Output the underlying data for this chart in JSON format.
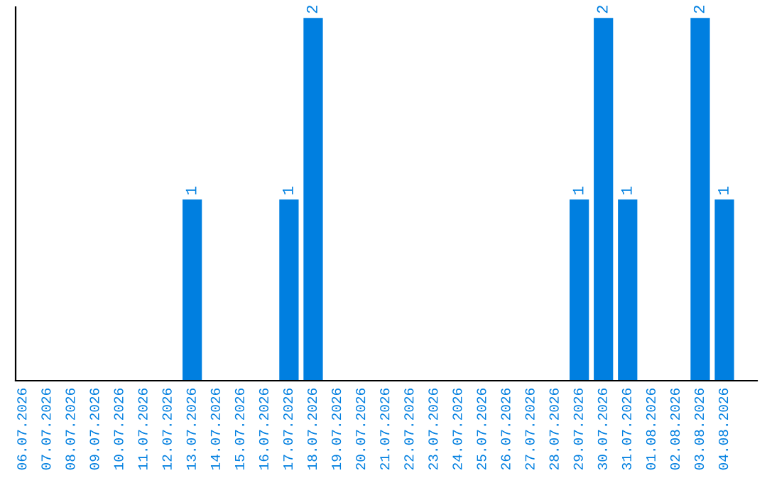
{
  "chart_data": {
    "type": "bar",
    "categories": [
      "06.07.2026",
      "07.07.2026",
      "08.07.2026",
      "09.07.2026",
      "10.07.2026",
      "11.07.2026",
      "12.07.2026",
      "13.07.2026",
      "14.07.2026",
      "15.07.2026",
      "16.07.2026",
      "17.07.2026",
      "18.07.2026",
      "19.07.2026",
      "20.07.2026",
      "21.07.2026",
      "22.07.2026",
      "23.07.2026",
      "24.07.2026",
      "25.07.2026",
      "26.07.2026",
      "27.07.2026",
      "28.07.2026",
      "29.07.2026",
      "30.07.2026",
      "31.07.2026",
      "01.08.2026",
      "02.08.2026",
      "03.08.2026",
      "04.08.2026"
    ],
    "values": [
      0,
      0,
      0,
      0,
      0,
      0,
      0,
      1,
      0,
      0,
      0,
      1,
      2,
      0,
      0,
      0,
      0,
      0,
      0,
      0,
      0,
      0,
      0,
      1,
      2,
      1,
      0,
      0,
      2,
      1
    ],
    "value_labels": [
      null,
      null,
      null,
      null,
      null,
      null,
      null,
      "1",
      null,
      null,
      null,
      "1",
      "2",
      null,
      null,
      null,
      null,
      null,
      null,
      null,
      null,
      null,
      null,
      "1",
      "2",
      "1",
      null,
      null,
      "2",
      "1"
    ],
    "color": "#007fe0",
    "tick_labels": "x",
    "grid": false,
    "legend": false
  }
}
